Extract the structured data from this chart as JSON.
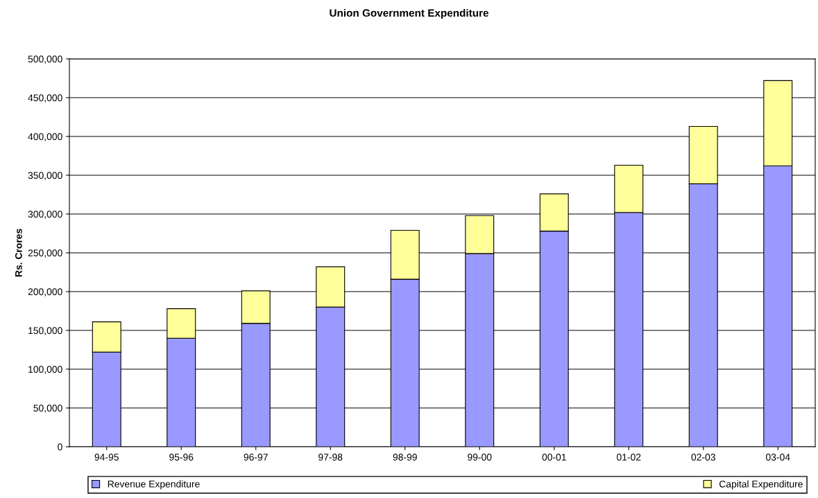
{
  "chart_data": {
    "type": "bar",
    "title": "Union Government Expenditure",
    "ylabel": "Rs. Crores",
    "categories": [
      "94-95",
      "95-96",
      "96-97",
      "97-98",
      "98-99",
      "99-00",
      "00-01",
      "01-02",
      "02-03",
      "03-04"
    ],
    "stacked": true,
    "series": [
      {
        "name": "Revenue Expenditure",
        "color": "#9999ff",
        "values": [
          122000,
          140000,
          159000,
          180000,
          216000,
          249000,
          278000,
          302000,
          339000,
          362000
        ]
      },
      {
        "name": "Capital Expenditure",
        "color": "#ffff99",
        "values": [
          39000,
          38000,
          42000,
          52000,
          63000,
          49000,
          48000,
          61000,
          74000,
          110000
        ]
      }
    ],
    "ylim": [
      0,
      500000
    ],
    "yticks": [
      {
        "value": 0,
        "label": "0"
      },
      {
        "value": 50000,
        "label": "50,000"
      },
      {
        "value": 100000,
        "label": "100,000"
      },
      {
        "value": 150000,
        "label": "150,000"
      },
      {
        "value": 200000,
        "label": "200,000"
      },
      {
        "value": 250000,
        "label": "250,000"
      },
      {
        "value": 300000,
        "label": "300,000"
      },
      {
        "value": 350000,
        "label": "350,000"
      },
      {
        "value": 400000,
        "label": "400,000"
      },
      {
        "value": 450000,
        "label": "450,000"
      },
      {
        "value": 500000,
        "label": "500,000"
      }
    ],
    "grid": "y",
    "legend": "bottom"
  }
}
